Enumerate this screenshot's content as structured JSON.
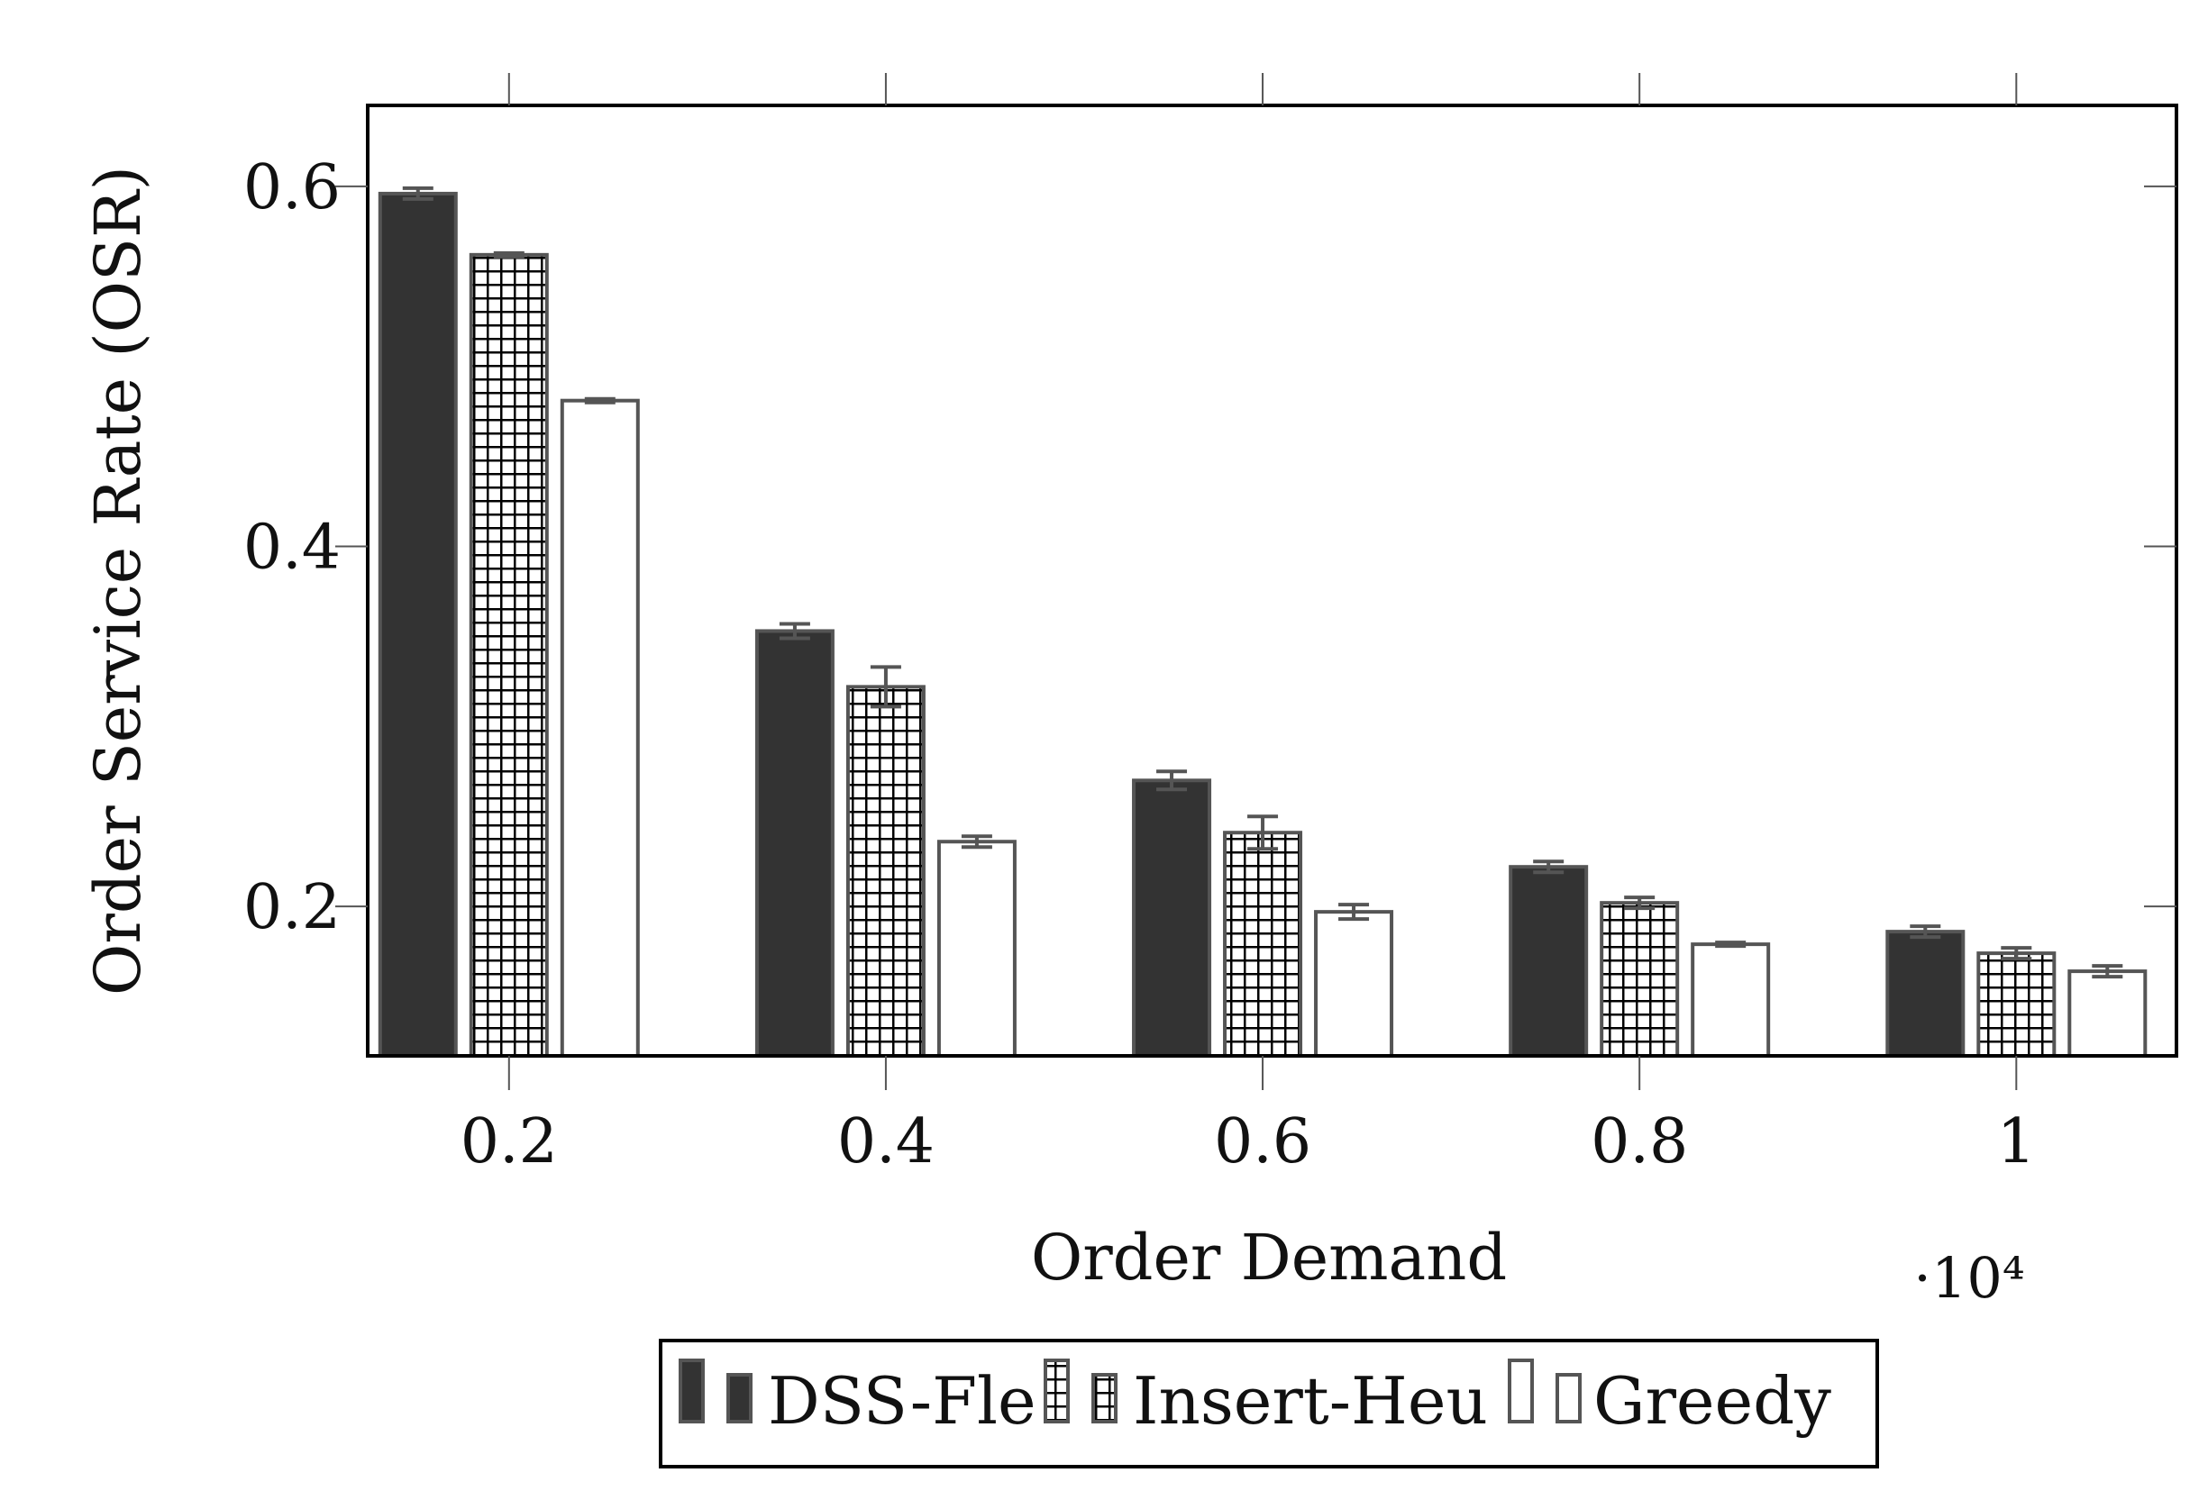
{
  "chart_data": {
    "type": "bar",
    "title": "",
    "xlabel": "Order Demand",
    "ylabel": "Order Service Rate (OSR)",
    "x_multiplier": "·10⁴",
    "categories": [
      "0.2",
      "0.4",
      "0.6",
      "0.8",
      "1"
    ],
    "x": [
      0.2,
      0.4,
      0.6,
      0.8,
      1.0
    ],
    "xlim": [
      0.125,
      1.085
    ],
    "ylim": [
      0.117,
      0.645
    ],
    "yticks": [
      0.2,
      0.4,
      0.6
    ],
    "ytick_labels": [
      "0.2",
      "0.4",
      "0.6"
    ],
    "grid": false,
    "legend_position": "bottom-center",
    "series": [
      {
        "name": "DSS-Fle",
        "pattern": "solid",
        "color": "#333333",
        "values": [
          0.596,
          0.353,
          0.27,
          0.222,
          0.186
        ],
        "errors": [
          0.003,
          0.004,
          0.005,
          0.003,
          0.003
        ]
      },
      {
        "name": "Insert-Heu",
        "pattern": "grid",
        "color": "#000000",
        "values": [
          0.562,
          0.322,
          0.241,
          0.202,
          0.174
        ],
        "errors": [
          0.001,
          0.011,
          0.009,
          0.003,
          0.003
        ]
      },
      {
        "name": "Greedy",
        "pattern": "none",
        "color": "#ffffff",
        "values": [
          0.481,
          0.236,
          0.197,
          0.179,
          0.164
        ],
        "errors": [
          0.001,
          0.003,
          0.004,
          0.001,
          0.003
        ]
      }
    ]
  }
}
